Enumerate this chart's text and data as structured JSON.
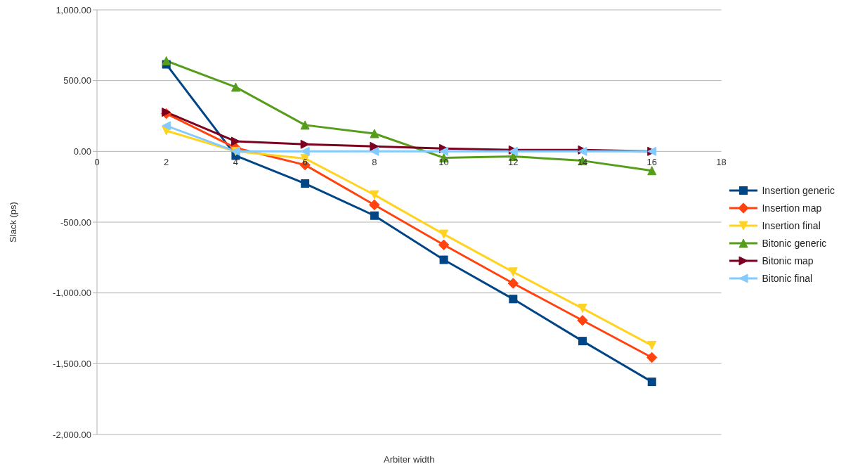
{
  "chart_data": {
    "type": "line",
    "xlabel": "Arbiter width",
    "ylabel": "Slack (ps)",
    "x": [
      2,
      4,
      6,
      8,
      10,
      12,
      14,
      16
    ],
    "series": [
      {
        "name": "Insertion generic",
        "color": "#004586",
        "marker": "square",
        "values": [
          615,
          -30,
          -227,
          -454,
          -766,
          -1043,
          -1340,
          -1628
        ]
      },
      {
        "name": "Insertion map",
        "color": "#ff420e",
        "marker": "diamond",
        "values": [
          267,
          25,
          -96,
          -378,
          -660,
          -932,
          -1194,
          -1456
        ]
      },
      {
        "name": "Insertion final",
        "color": "#ffd320",
        "marker": "triangle-down",
        "values": [
          146,
          0,
          -50,
          -307,
          -585,
          -852,
          -1109,
          -1371
        ]
      },
      {
        "name": "Bitonic generic",
        "color": "#579d1c",
        "marker": "triangle",
        "values": [
          640,
          454,
          186,
          126,
          -45,
          -35,
          -66,
          -136
        ]
      },
      {
        "name": "Bitonic map",
        "color": "#7e0021",
        "marker": "triangle-right",
        "values": [
          277,
          71,
          50,
          35,
          20,
          10,
          10,
          0
        ]
      },
      {
        "name": "Bitonic final",
        "color": "#83caff",
        "marker": "triangle-left",
        "values": [
          181,
          0,
          0,
          0,
          0,
          0,
          0,
          0
        ]
      }
    ],
    "xlim": [
      0,
      18
    ],
    "xticks": [
      0,
      2,
      4,
      6,
      8,
      10,
      12,
      14,
      16,
      18
    ],
    "ylim": [
      -2000,
      1000
    ],
    "yticks": [
      {
        "value": -2000,
        "label": "-2,000.00"
      },
      {
        "value": -1500,
        "label": "-1,500.00"
      },
      {
        "value": -1000,
        "label": "-1,000.00"
      },
      {
        "value": -500,
        "label": "-500.00"
      },
      {
        "value": 0,
        "label": "0.00"
      },
      {
        "value": 500,
        "label": "500.00"
      },
      {
        "value": 1000,
        "label": "1,000.00"
      }
    ],
    "grid": "y",
    "legend": "right",
    "line_style": "solid"
  }
}
